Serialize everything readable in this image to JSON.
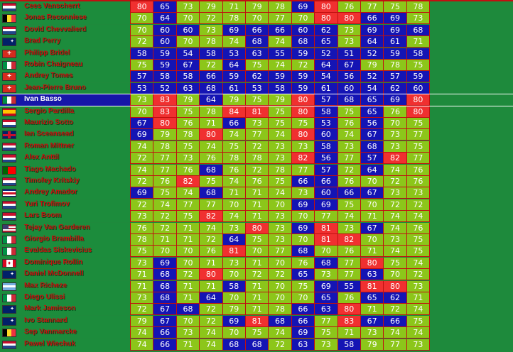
{
  "colors": {
    "green": "#8cc61a",
    "blue": "#1414b4",
    "red": "#f03030",
    "name_bg": "#1c8c3c",
    "highlight_bg": "#1616a8"
  },
  "thresholds": {
    "red_min": 80,
    "blue_max": 69
  },
  "rows": [
    {
      "name": "Cees Vanscherrt",
      "flag": "nl",
      "values": [
        80,
        65,
        73,
        79,
        71,
        79,
        78,
        69,
        80,
        76,
        77,
        75,
        78
      ]
    },
    {
      "name": "Jonas Reconniese",
      "flag": "be",
      "values": [
        70,
        64,
        70,
        72,
        78,
        70,
        77,
        70,
        80,
        80,
        66,
        69,
        73
      ]
    },
    {
      "name": "Dovid Chevvalierd",
      "flag": "nl",
      "values": [
        70,
        60,
        60,
        73,
        69,
        66,
        66,
        60,
        62,
        73,
        69,
        69,
        68
      ]
    },
    {
      "name": "Brad Perry",
      "flag": "au",
      "values": [
        72,
        60,
        70,
        78,
        74,
        68,
        74,
        68,
        65,
        73,
        64,
        61,
        71
      ]
    },
    {
      "name": "Philipp Bridel",
      "flag": "ch",
      "values": [
        58,
        59,
        54,
        58,
        53,
        63,
        55,
        59,
        52,
        51,
        52,
        59,
        58
      ]
    },
    {
      "name": "Robin Chaigneau",
      "flag": "it",
      "values": [
        75,
        59,
        67,
        72,
        64,
        75,
        74,
        72,
        64,
        67,
        79,
        78,
        75
      ]
    },
    {
      "name": "Andrey Tomes",
      "flag": "ch",
      "values": [
        57,
        58,
        58,
        66,
        59,
        62,
        59,
        59,
        54,
        56,
        52,
        57,
        59
      ]
    },
    {
      "name": "Jean-Pierre Bruno",
      "flag": "ch",
      "values": [
        53,
        52,
        63,
        68,
        61,
        53,
        58,
        59,
        61,
        60,
        54,
        62,
        60
      ]
    },
    {
      "name": "Ivan Basso",
      "flag": "it",
      "highlight": true,
      "values": [
        73,
        83,
        79,
        64,
        79,
        75,
        79,
        80,
        57,
        68,
        65,
        69,
        80
      ]
    },
    {
      "name": "Sergio Pardilla",
      "flag": "es",
      "values": [
        70,
        83,
        75,
        78,
        84,
        81,
        75,
        80,
        58,
        75,
        65,
        76,
        80
      ]
    },
    {
      "name": "Maurizio Sotto",
      "flag": "nl",
      "values": [
        67,
        80,
        76,
        71,
        66,
        73,
        75,
        75,
        53,
        76,
        56,
        70,
        75
      ]
    },
    {
      "name": "Ian Sceansead",
      "flag": "gb",
      "values": [
        69,
        79,
        78,
        80,
        74,
        77,
        74,
        80,
        60,
        74,
        67,
        73,
        77
      ]
    },
    {
      "name": "Roman Mittner",
      "flag": "nl",
      "values": [
        74,
        78,
        75,
        74,
        75,
        72,
        73,
        73,
        58,
        73,
        68,
        73,
        75
      ]
    },
    {
      "name": "Alex Anttil",
      "flag": "nl",
      "values": [
        72,
        77,
        73,
        76,
        78,
        78,
        73,
        82,
        56,
        77,
        57,
        82,
        77
      ]
    },
    {
      "name": "Tiago Machado",
      "flag": "pt",
      "values": [
        74,
        77,
        76,
        68,
        76,
        72,
        78,
        77,
        57,
        72,
        64,
        74,
        76
      ]
    },
    {
      "name": "Timofey Kritskiy",
      "flag": "nl",
      "values": [
        72,
        76,
        82,
        75,
        74,
        76,
        75,
        66,
        66,
        76,
        70,
        72,
        76
      ]
    },
    {
      "name": "Andrey Amador",
      "flag": "cr",
      "values": [
        69,
        75,
        74,
        68,
        71,
        71,
        74,
        73,
        60,
        66,
        67,
        73,
        73
      ]
    },
    {
      "name": "Yuri Trofimov",
      "flag": "nl",
      "values": [
        72,
        74,
        77,
        77,
        70,
        71,
        70,
        69,
        69,
        75,
        70,
        72,
        72
      ]
    },
    {
      "name": "Lars Boom",
      "flag": "nl",
      "values": [
        73,
        72,
        75,
        82,
        74,
        71,
        73,
        70,
        77,
        74,
        71,
        74,
        74
      ]
    },
    {
      "name": "Tejay Van Garderen",
      "flag": "us",
      "values": [
        76,
        72,
        71,
        74,
        73,
        80,
        73,
        69,
        81,
        73,
        67,
        74,
        76
      ]
    },
    {
      "name": "Giorgio Brambilla",
      "flag": "it",
      "values": [
        78,
        71,
        71,
        72,
        64,
        75,
        73,
        70,
        81,
        82,
        70,
        73,
        75
      ]
    },
    {
      "name": "Evaldas Siskevicius",
      "flag": "it",
      "values": [
        75,
        70,
        70,
        76,
        81,
        70,
        77,
        68,
        70,
        76,
        71,
        74,
        75
      ]
    },
    {
      "name": "Dominique Rollin",
      "flag": "ca",
      "values": [
        73,
        69,
        70,
        71,
        73,
        71,
        70,
        76,
        68,
        77,
        80,
        75,
        74
      ]
    },
    {
      "name": "Daniel McDonnell",
      "flag": "au",
      "values": [
        71,
        68,
        72,
        80,
        70,
        72,
        72,
        65,
        73,
        77,
        63,
        70,
        72
      ]
    },
    {
      "name": "Max Richeze",
      "flag": "ar",
      "values": [
        71,
        68,
        71,
        71,
        58,
        71,
        70,
        75,
        69,
        55,
        81,
        80,
        73
      ]
    },
    {
      "name": "Diego Ulissi",
      "flag": "it",
      "values": [
        73,
        68,
        71,
        64,
        70,
        71,
        70,
        70,
        65,
        76,
        65,
        62,
        71
      ]
    },
    {
      "name": "Mark Jamieson",
      "flag": "au",
      "values": [
        72,
        67,
        68,
        72,
        79,
        71,
        78,
        66,
        63,
        80,
        71,
        72,
        74
      ]
    },
    {
      "name": "Ivo Stannard",
      "flag": "au",
      "values": [
        79,
        67,
        70,
        72,
        69,
        81,
        68,
        66,
        77,
        83,
        67,
        66,
        75
      ]
    },
    {
      "name": "Sep Vanmarcke",
      "flag": "be",
      "values": [
        74,
        66,
        73,
        74,
        70,
        75,
        74,
        69,
        75,
        71,
        73,
        74,
        74
      ]
    },
    {
      "name": "Pawel Wiechuk",
      "flag": "nl",
      "values": [
        74,
        66,
        71,
        74,
        68,
        68,
        72,
        63,
        73,
        58,
        79,
        77,
        73
      ]
    }
  ]
}
